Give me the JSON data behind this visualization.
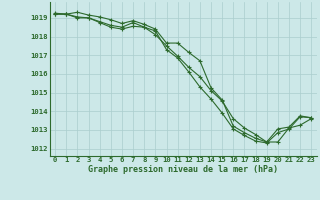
{
  "xlabel": "Graphe pression niveau de la mer (hPa)",
  "hours": [
    0,
    1,
    2,
    3,
    4,
    5,
    6,
    7,
    8,
    9,
    10,
    11,
    12,
    13,
    14,
    15,
    16,
    17,
    18,
    19,
    20,
    21,
    22,
    23
  ],
  "line1": [
    1019.2,
    1019.2,
    1019.3,
    1019.15,
    1019.05,
    1018.9,
    1018.7,
    1018.85,
    1018.65,
    1018.4,
    1017.65,
    1017.65,
    1017.15,
    1016.7,
    1015.25,
    1014.6,
    1013.2,
    1012.85,
    1012.55,
    1012.35,
    1013.05,
    1013.15,
    1013.75,
    1013.65
  ],
  "line2": [
    1019.2,
    1019.2,
    1019.05,
    1019.0,
    1018.8,
    1018.6,
    1018.5,
    1018.75,
    1018.5,
    1018.1,
    1017.5,
    1016.95,
    1016.35,
    1015.85,
    1015.1,
    1014.55,
    1013.6,
    1013.1,
    1012.75,
    1012.35,
    1012.35,
    1013.1,
    1013.25,
    1013.6
  ],
  "line3": [
    1019.25,
    1019.2,
    1019.0,
    1019.0,
    1018.75,
    1018.5,
    1018.4,
    1018.55,
    1018.5,
    1018.3,
    1017.3,
    1016.85,
    1016.1,
    1015.3,
    1014.65,
    1013.9,
    1013.05,
    1012.7,
    1012.4,
    1012.3,
    1012.85,
    1013.05,
    1013.7,
    1013.65
  ],
  "line_color": "#2d6a2d",
  "bg_color": "#cce8e8",
  "grid_color": "#aacece",
  "tick_label_color": "#2d6a2d",
  "xlabel_color": "#2d6a2d",
  "ylim": [
    1011.6,
    1019.85
  ],
  "yticks": [
    1012,
    1013,
    1014,
    1015,
    1016,
    1017,
    1018,
    1019
  ],
  "xticks": [
    0,
    1,
    2,
    3,
    4,
    5,
    6,
    7,
    8,
    9,
    10,
    11,
    12,
    13,
    14,
    15,
    16,
    17,
    18,
    19,
    20,
    21,
    22,
    23
  ],
  "marker": "+",
  "markersize": 3.5,
  "linewidth": 0.8,
  "tick_fontsize": 5.2,
  "xlabel_fontsize": 6.0
}
